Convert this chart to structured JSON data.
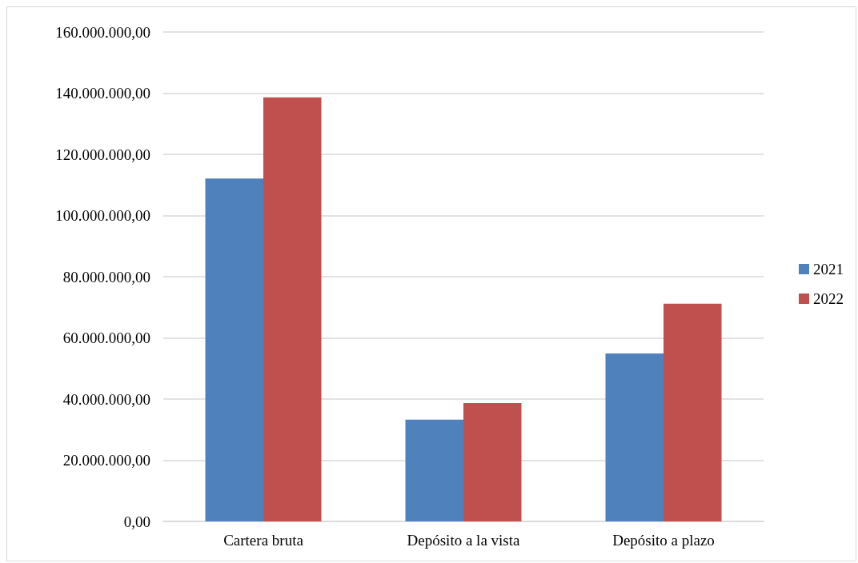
{
  "chart_data": {
    "type": "bar",
    "categories": [
      "Cartera bruta",
      "Depósito a la vista",
      "Depósito a plazo"
    ],
    "series": [
      {
        "name": "2021",
        "color": "#4f81bd",
        "values": [
          112100000,
          33300000,
          54900000
        ]
      },
      {
        "name": "2022",
        "color": "#c0504d",
        "values": [
          138600000,
          38700000,
          71200000
        ]
      }
    ],
    "ylim": [
      0,
      160000000
    ],
    "yticks": [
      {
        "value": 0,
        "label": "0,00"
      },
      {
        "value": 20000000,
        "label": "20.000.000,00"
      },
      {
        "value": 40000000,
        "label": "40.000.000,00"
      },
      {
        "value": 60000000,
        "label": "60.000.000,00"
      },
      {
        "value": 80000000,
        "label": "80.000.000,00"
      },
      {
        "value": 100000000,
        "label": "100.000.000,00"
      },
      {
        "value": 120000000,
        "label": "120.000.000,00"
      },
      {
        "value": 140000000,
        "label": "140.000.000,00"
      },
      {
        "value": 160000000,
        "label": "160.000.000,00"
      }
    ],
    "grid": "y",
    "legend": "right"
  }
}
